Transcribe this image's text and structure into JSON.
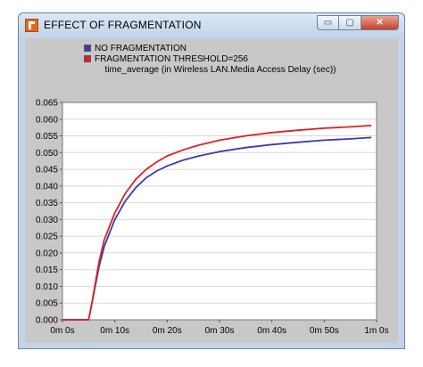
{
  "window": {
    "title": "EFFECT OF FRAGMENTATION",
    "minimize_symbol": "▭",
    "maximize_symbol": "▢",
    "close_symbol": "✕"
  },
  "chart_data": {
    "type": "line",
    "title": "time_average (in Wireless LAN.Media Access Delay (sec))",
    "xlabel": "",
    "ylabel": "",
    "x_ticks": [
      "0m 0s",
      "0m 10s",
      "0m 20s",
      "0m 30s",
      "0m 40s",
      "0m 50s",
      "1m 0s"
    ],
    "y_ticks": [
      "0.000",
      "0.005",
      "0.010",
      "0.015",
      "0.020",
      "0.025",
      "0.030",
      "0.035",
      "0.040",
      "0.045",
      "0.050",
      "0.055",
      "0.060",
      "0.065"
    ],
    "xlim": [
      0,
      60
    ],
    "ylim": [
      0,
      0.065
    ],
    "grid": true,
    "legend_position": "top-left",
    "series": [
      {
        "name": "NO FRAGMENTATION",
        "color": "#3b3bb0",
        "x": [
          0,
          5,
          5.5,
          6,
          7,
          8,
          10,
          12,
          14,
          16,
          18,
          20,
          23,
          26,
          30,
          35,
          40,
          45,
          50,
          55,
          59
        ],
        "y": [
          0.0,
          0.0,
          0.004,
          0.008,
          0.016,
          0.022,
          0.03,
          0.0355,
          0.0395,
          0.0425,
          0.0445,
          0.046,
          0.0477,
          0.049,
          0.0503,
          0.0515,
          0.0524,
          0.0531,
          0.0537,
          0.0541,
          0.0545
        ]
      },
      {
        "name": "FRAGMENTATION THRESHOLD=256",
        "color": "#e02020",
        "x": [
          0,
          5,
          5.5,
          6,
          7,
          8,
          10,
          12,
          14,
          16,
          18,
          20,
          23,
          26,
          30,
          35,
          40,
          45,
          50,
          55,
          59
        ],
        "y": [
          0.0,
          0.0,
          0.004,
          0.0085,
          0.0175,
          0.024,
          0.032,
          0.0378,
          0.042,
          0.045,
          0.0472,
          0.049,
          0.0508,
          0.0522,
          0.0537,
          0.055,
          0.056,
          0.0567,
          0.0573,
          0.0577,
          0.0581
        ]
      }
    ]
  }
}
